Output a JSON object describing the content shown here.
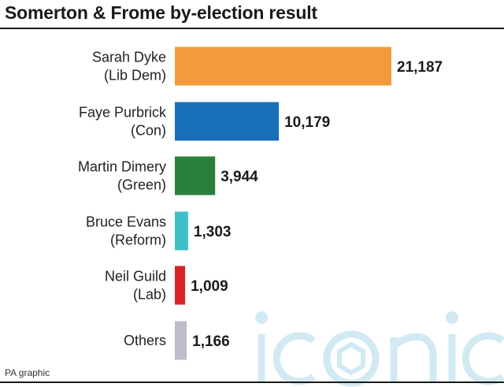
{
  "title": "Somerton & Frome by-election result",
  "source": "PA graphic",
  "watermark": "iconic",
  "chart_data": {
    "type": "bar",
    "orientation": "horizontal",
    "title": "Somerton & Frome by-election result",
    "categories": [
      [
        "Sarah Dyke",
        "(Lib Dem)"
      ],
      [
        "Faye Purbrick",
        "(Con)"
      ],
      [
        "Martin Dimery",
        "(Green)"
      ],
      [
        "Bruce Evans",
        "(Reform)"
      ],
      [
        "Neil Guild",
        "(Lab)"
      ],
      [
        "Others"
      ]
    ],
    "values": [
      21187,
      10179,
      3944,
      1303,
      1009,
      1166
    ],
    "value_labels": [
      "21,187",
      "10,179",
      "3,944",
      "1,303",
      "1,009",
      "1,166"
    ],
    "colors": [
      "#f39b3c",
      "#1a6fbb",
      "#2a7f3a",
      "#3dbfc8",
      "#d9232a",
      "#bcbccc"
    ],
    "xlim": [
      0,
      21187
    ],
    "grid": false,
    "legend": "none"
  }
}
